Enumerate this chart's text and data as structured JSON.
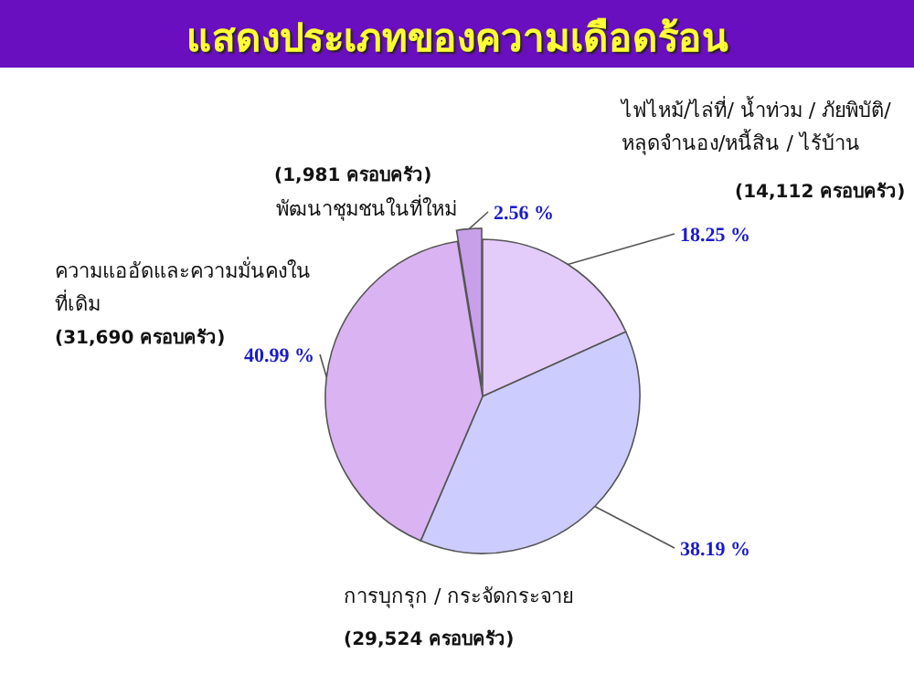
{
  "chart_data": {
    "type": "pie",
    "title": "แสดงประเภทของความเดือดร้อน",
    "categories": [
      "ไฟไหม้/ไล่ที่/ น้ำท่วม / ภัยพิบัติ/ หลุดจำนอง/หนี้สิน / ไร้บ้าน",
      "การบุกรุก / กระจัดกระจาย",
      "ความแออัดและความมั่นคงในที่เดิม",
      "พัฒนาชุมชนในที่ใหม่"
    ],
    "values": [
      18.25,
      38.19,
      40.99,
      2.56
    ],
    "colors": [
      "#e4ccfa",
      "#ccccff",
      "#dab4f2",
      "#c8a0ea"
    ],
    "value_labels": [
      "18.25 %",
      "38.19 %",
      "40.99 %",
      "2.56 %"
    ],
    "annotations": [
      "(14,112 ครอบครัว)",
      "(29,524 ครอบครัว)",
      "(31,690 ครอบครัว)",
      "(1,981 ครอบครัว)"
    ]
  }
}
